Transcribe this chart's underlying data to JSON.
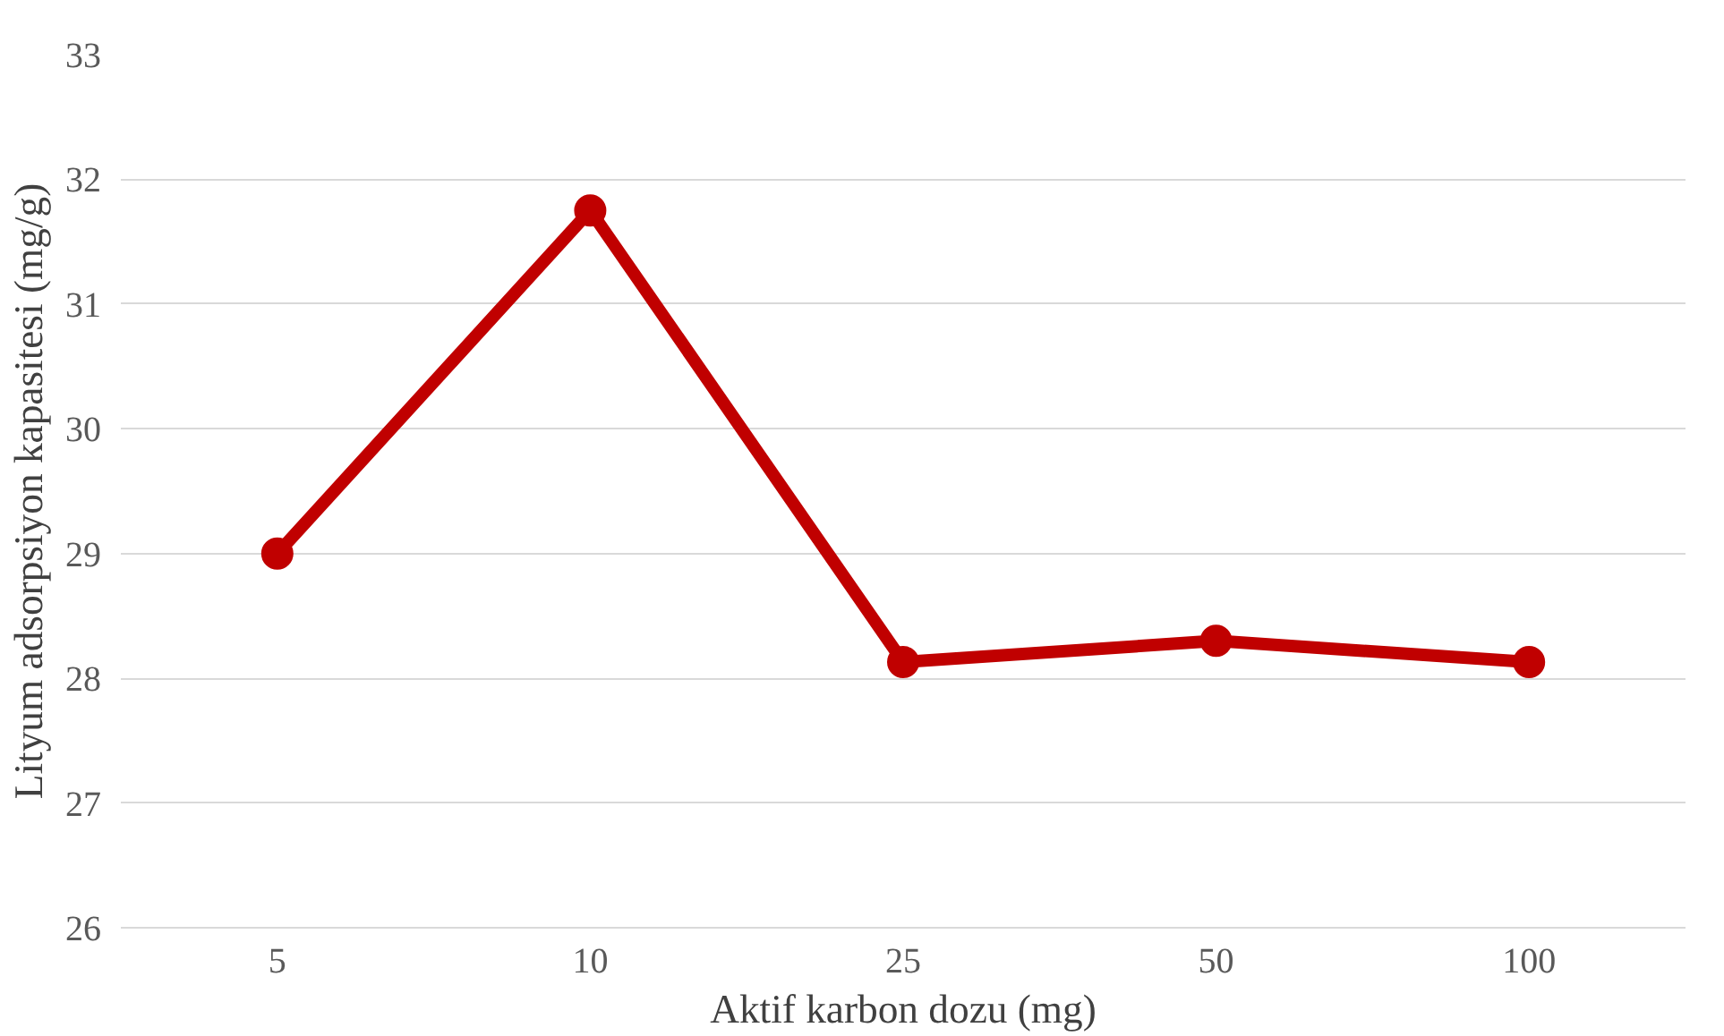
{
  "chart_data": {
    "type": "line",
    "xlabel": "Aktif karbon dozu (mg)",
    "ylabel": "Lityum adsorpsiyon kapasitesi (mg/g)",
    "categories": [
      "5",
      "10",
      "25",
      "50",
      "100"
    ],
    "series": [
      {
        "color": "#c00000",
        "values": [
          29.0,
          31.75,
          28.13,
          28.3,
          28.13
        ]
      }
    ],
    "ylim": [
      26,
      33
    ],
    "yticks": [
      26,
      27,
      28,
      29,
      30,
      31,
      32,
      33
    ],
    "grid": "y",
    "marker": "circle",
    "line_style": "solid"
  }
}
